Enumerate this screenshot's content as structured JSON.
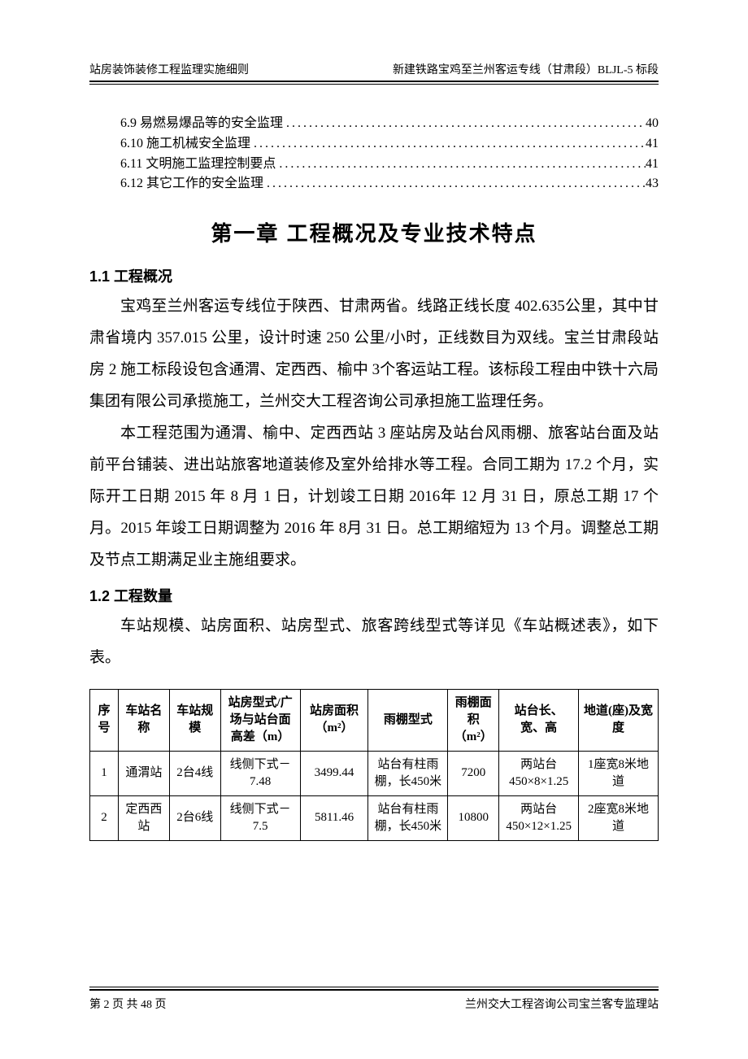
{
  "header": {
    "left": "站房装饰装修工程监理实施细则",
    "right": "新建铁路宝鸡至兰州客运专线（甘肃段）BLJL-5 标段"
  },
  "toc": [
    {
      "label": "6.9 易燃易爆品等的安全监理",
      "page": "40"
    },
    {
      "label": "6.10 施工机械安全监理",
      "page": "41"
    },
    {
      "label": "6.11 文明施工监理控制要点",
      "page": "41"
    },
    {
      "label": "6.12 其它工作的安全监理",
      "page": "43"
    }
  ],
  "chapter_title": "第一章  工程概况及专业技术特点",
  "sections": {
    "s1": {
      "heading": "1.1 工程概况",
      "paras": [
        "宝鸡至兰州客运专线位于陕西、甘肃两省。线路正线长度 402.635公里，其中甘肃省境内 357.015 公里，设计时速 250 公里/小时，正线数目为双线。宝兰甘肃段站房 2 施工标段设包含通渭、定西西、榆中 3个客运站工程。该标段工程由中铁十六局集团有限公司承揽施工，兰州交大工程咨询公司承担施工监理任务。",
        "本工程范围为通渭、榆中、定西西站 3 座站房及站台风雨棚、旅客站台面及站前平台铺装、进出站旅客地道装修及室外给排水等工程。合同工期为 17.2 个月，实际开工日期 2015 年 8 月 1 日，计划竣工日期 2016年 12 月 31 日，原总工期 17 个月。2015 年竣工日期调整为 2016 年 8月 31 日。总工期缩短为 13 个月。调整总工期及节点工期满足业主施组要求。"
      ]
    },
    "s2": {
      "heading": "1.2 工程数量",
      "paras": [
        "车站规模、站房面积、站房型式、旅客跨线型式等详见《车站概述表》，如下表。"
      ]
    }
  },
  "table": {
    "columns": [
      "序号",
      "车站名称",
      "车站规模",
      "站房型式/广场与站台面高差（m）",
      "站房面积（m²）",
      "雨棚型式",
      "雨棚面积（m²）",
      "站台长、宽、高",
      "地道(座)及宽度"
    ],
    "col_widths": [
      "5%",
      "9%",
      "9%",
      "14%",
      "12%",
      "14%",
      "9%",
      "14%",
      "14%"
    ],
    "rows": [
      [
        "1",
        "通渭站",
        "2台4线",
        "线侧下式－7.48",
        "3499.44",
        "站台有柱雨棚，长450米",
        "7200",
        "两站台450×8×1.25",
        "1座宽8米地道"
      ],
      [
        "2",
        "定西西站",
        "2台6线",
        "线侧下式－7.5",
        "5811.46",
        "站台有柱雨棚，长450米",
        "10800",
        "两站台450×12×1.25",
        "2座宽8米地道"
      ]
    ]
  },
  "footer": {
    "left": "第 2 页 共 48 页",
    "right": "兰州交大工程咨询公司宝兰客专监理站"
  },
  "colors": {
    "text": "#000000",
    "background": "#ffffff",
    "border": "#000000"
  }
}
